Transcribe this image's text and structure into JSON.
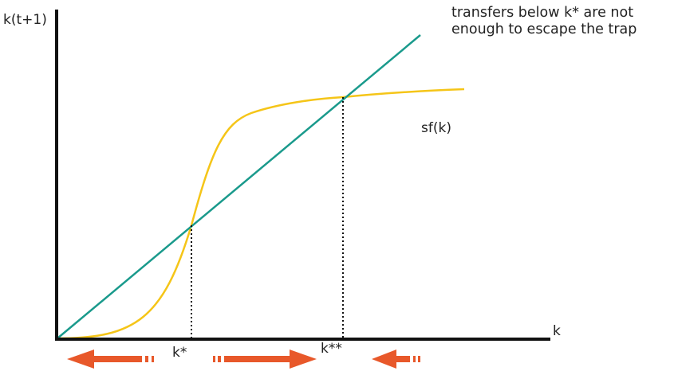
{
  "axes": {
    "y_label": "k(t+1)",
    "x_label": "k"
  },
  "curve_label": "sf(k)",
  "equilibria": [
    {
      "label": "k*"
    },
    {
      "label": "k**"
    }
  ],
  "annotation": {
    "line1": "transfers below k* are not",
    "line2": "enough to escape the trap"
  },
  "colors": {
    "axis": "#111111",
    "curve": "#F5C518",
    "line_45": "#1A9A8C",
    "arrows": "#E8582A",
    "guide": "#111111"
  },
  "arrows": [
    {
      "name": "left-arrow-1",
      "direction": "left"
    },
    {
      "name": "right-arrow",
      "direction": "right"
    },
    {
      "name": "left-arrow-2",
      "direction": "left"
    }
  ]
}
